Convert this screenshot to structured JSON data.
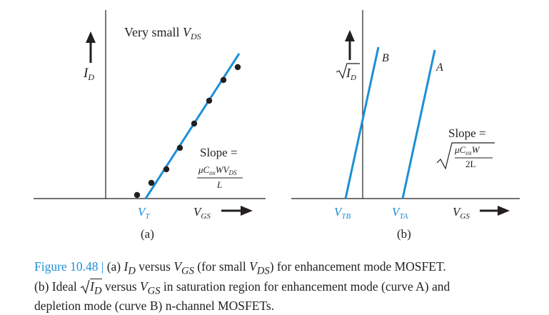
{
  "panel_a": {
    "ylabel_main": "I",
    "ylabel_sub": "D",
    "annotation_prefix": "Very small ",
    "annotation_var": "V",
    "annotation_sub": "DS",
    "slope_label": "Slope =",
    "slope_num_mu": "μC",
    "slope_num_ox": "ox",
    "slope_num_wv": "WV",
    "slope_num_ds": "DS",
    "slope_den": "L",
    "xtick_main": "V",
    "xtick_sub": "T",
    "xlabel_main": "V",
    "xlabel_sub": "GS",
    "panel_label": "(a)"
  },
  "panel_b": {
    "ylabel_main": "I",
    "ylabel_sub": "D",
    "curve_b_label": "B",
    "curve_a_label": "A",
    "slope_label": "Slope =",
    "slope_num_mu": "μC",
    "slope_num_ox": "ox",
    "slope_num_w": "W",
    "slope_den": "2L",
    "xtick_b_main": "V",
    "xtick_b_sub": "TB",
    "xtick_a_main": "V",
    "xtick_a_sub": "TA",
    "xlabel_main": "V",
    "xlabel_sub": "GS",
    "panel_label": "(b)"
  },
  "caption": {
    "lead": "Figure 10.48 |",
    "l1_a": " (a) ",
    "id1": "I",
    "id1_sub": "D",
    "l1_b": " versus ",
    "vgs1": "V",
    "vgs1_sub": "GS",
    "l1_c": " (for small ",
    "vds": "V",
    "vds_sub": "DS",
    "l1_d": ") for enhancement mode MOSFET.",
    "l2_a": "(b) Ideal ",
    "id2": "I",
    "id2_sub": "D",
    "l2_b": " versus ",
    "vgs2": "V",
    "vgs2_sub": "GS",
    "l2_c": " in saturation region for enhancement mode (curve A) and",
    "l3": "depletion mode (curve B) n-channel MOSFETs."
  },
  "colors": {
    "accent": "#1d8fd6",
    "ink": "#231f20"
  }
}
